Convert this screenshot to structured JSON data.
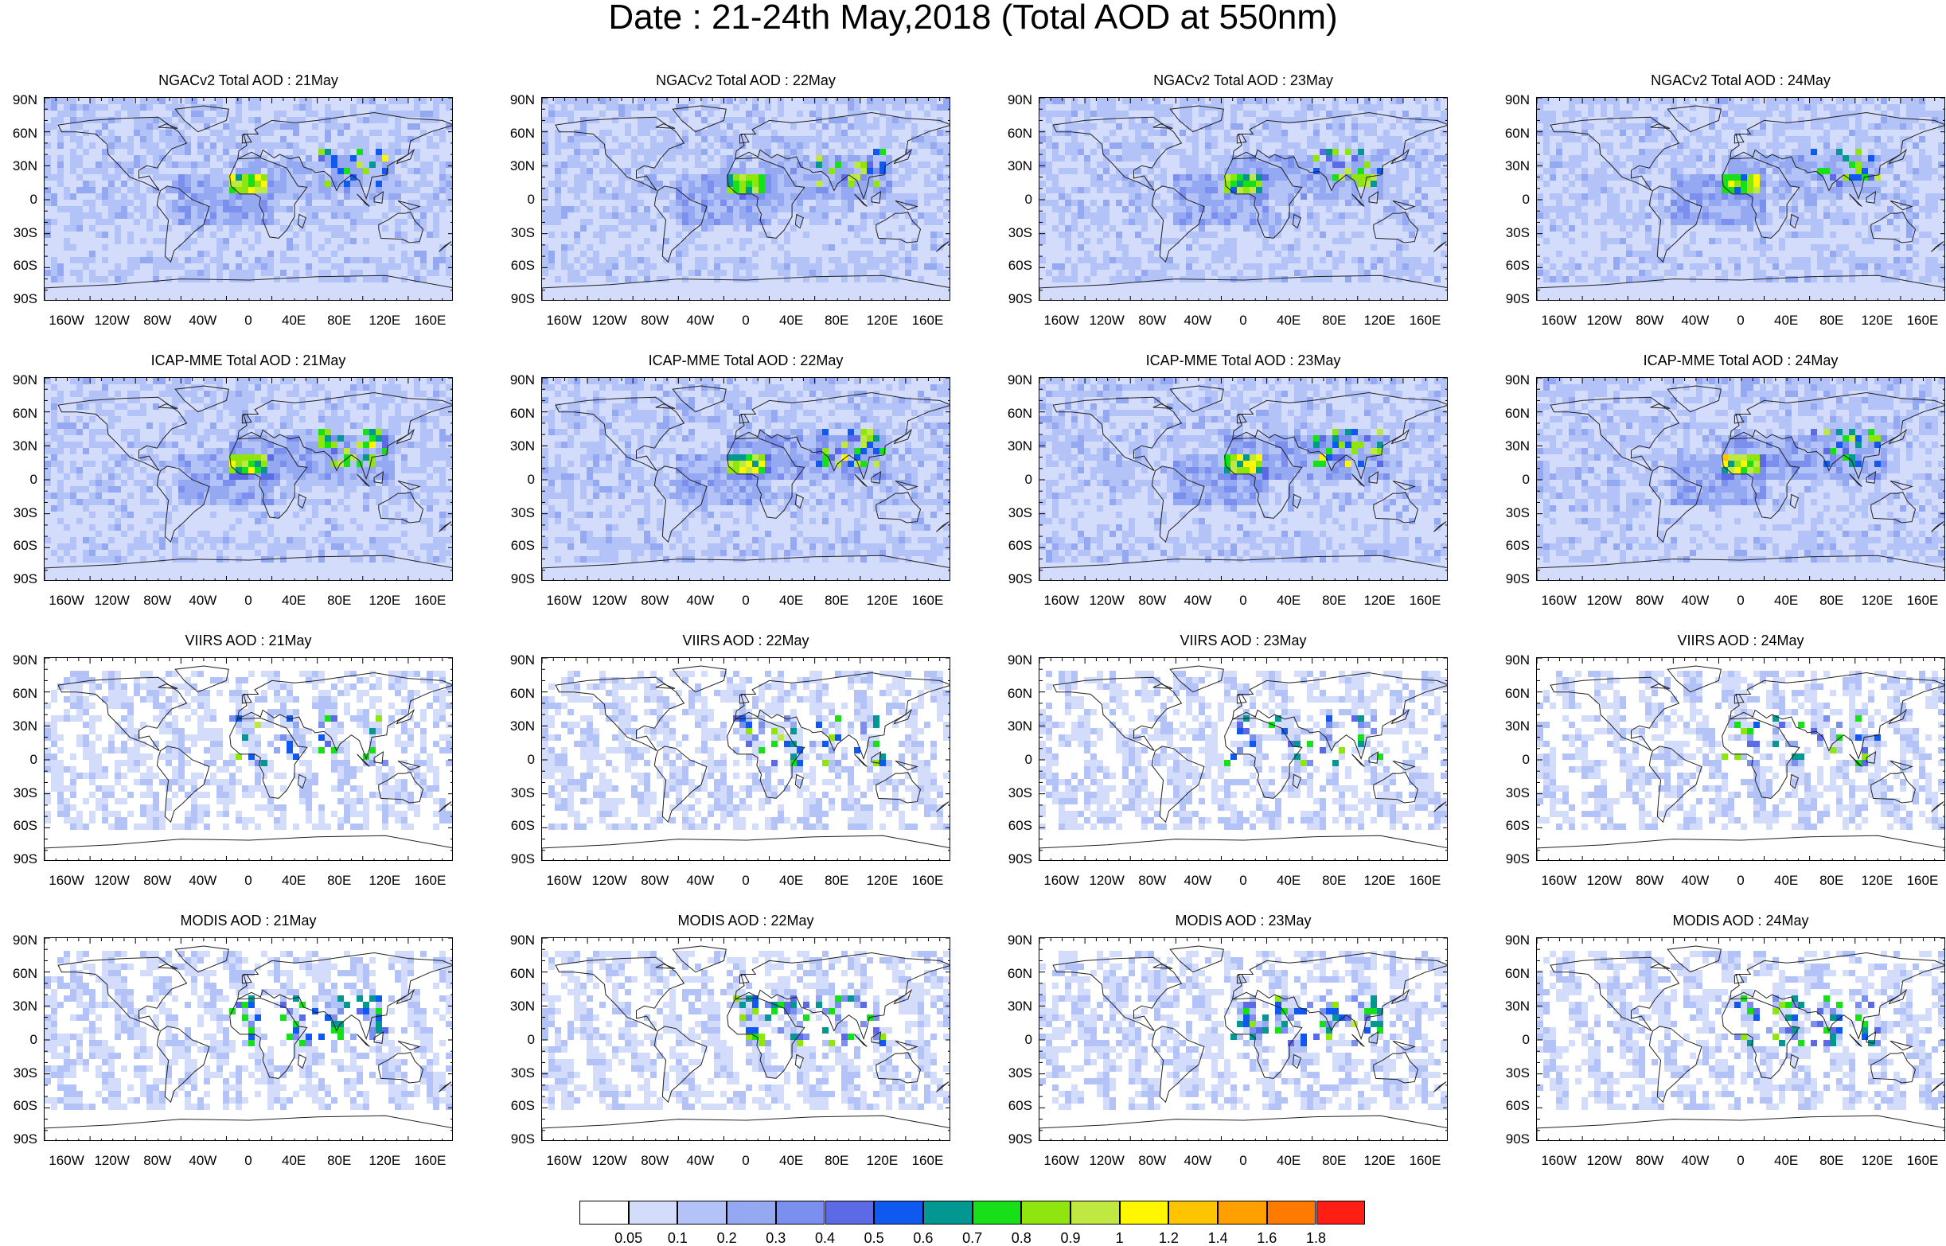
{
  "title": "Date : 21-24th May,2018 (Total AOD at 550nm)",
  "lat_labels": [
    "90N",
    "60N",
    "30N",
    "0",
    "30S",
    "60S",
    "90S"
  ],
  "lon_labels": [
    "160W",
    "120W",
    "80W",
    "40W",
    "0",
    "40E",
    "80E",
    "120E",
    "160E"
  ],
  "panels": [
    {
      "title": "NGACv2 Total AOD : 21May",
      "style": "model",
      "intensity": 0.55
    },
    {
      "title": "NGACv2 Total AOD : 22May",
      "style": "model",
      "intensity": 0.6
    },
    {
      "title": "NGACv2 Total AOD : 23May",
      "style": "model",
      "intensity": 0.6
    },
    {
      "title": "NGACv2 Total AOD : 24May",
      "style": "model",
      "intensity": 0.55
    },
    {
      "title": "ICAP-MME Total AOD : 21May",
      "style": "model",
      "intensity": 0.8
    },
    {
      "title": "ICAP-MME Total AOD : 22May",
      "style": "model",
      "intensity": 0.8
    },
    {
      "title": "ICAP-MME Total AOD : 23May",
      "style": "model",
      "intensity": 0.8
    },
    {
      "title": "ICAP-MME Total AOD : 24May",
      "style": "model",
      "intensity": 0.8
    },
    {
      "title": "VIIRS AOD : 21May",
      "style": "satellite",
      "intensity": 0.35
    },
    {
      "title": "VIIRS AOD : 22May",
      "style": "satellite",
      "intensity": 0.35
    },
    {
      "title": "VIIRS AOD : 23May",
      "style": "satellite",
      "intensity": 0.35
    },
    {
      "title": "VIIRS AOD : 24May",
      "style": "satellite",
      "intensity": 0.35
    },
    {
      "title": "MODIS AOD : 21May",
      "style": "satellite",
      "intensity": 0.55
    },
    {
      "title": "MODIS AOD : 22May",
      "style": "satellite",
      "intensity": 0.55
    },
    {
      "title": "MODIS AOD : 23May",
      "style": "satellite",
      "intensity": 0.55
    },
    {
      "title": "MODIS AOD : 24May",
      "style": "satellite",
      "intensity": 0.55
    }
  ],
  "colorbar": {
    "colors": [
      "#ffffff",
      "#d3dcfb",
      "#b4c3f7",
      "#94a9f2",
      "#7b90ee",
      "#5d6ae6",
      "#0f58f0",
      "#039791",
      "#18e018",
      "#8ee60e",
      "#bfe940",
      "#fff700",
      "#ffc400",
      "#ff9f00",
      "#ff7a00",
      "#ff1e14"
    ],
    "labels": [
      "0.05",
      "0.1",
      "0.2",
      "0.3",
      "0.4",
      "0.5",
      "0.6",
      "0.7",
      "0.8",
      "0.9",
      "1",
      "1.2",
      "1.4",
      "1.6",
      "1.8"
    ]
  }
}
